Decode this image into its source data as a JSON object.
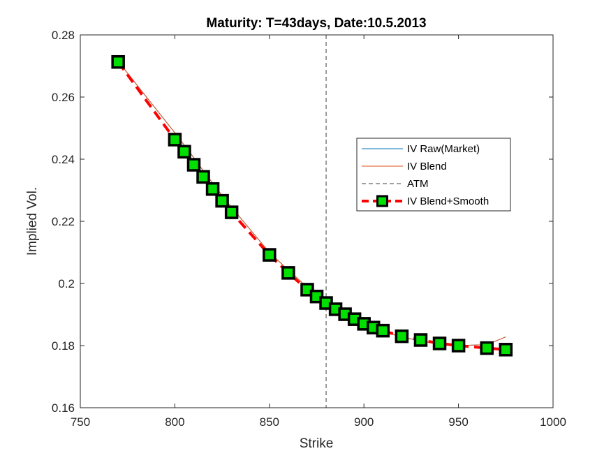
{
  "chart_data": {
    "type": "line",
    "title": "Maturity: T=43days, Date:10.5.2013",
    "xlabel": "Strike",
    "ylabel": "Implied Vol.",
    "xlim": [
      750,
      1000
    ],
    "ylim": [
      0.16,
      0.28
    ],
    "xticks": [
      750,
      800,
      850,
      900,
      950,
      1000
    ],
    "xtick_labels": [
      "750",
      "800",
      "850",
      "900",
      "950",
      "1000"
    ],
    "yticks": [
      0.16,
      0.18,
      0.2,
      0.22,
      0.24,
      0.26,
      0.28
    ],
    "ytick_labels": [
      "0.16",
      "0.18",
      "0.2",
      "0.22",
      "0.24",
      "0.26",
      "0.28"
    ],
    "grid": false,
    "legend_position": "right",
    "atm_strike": 880,
    "series": [
      {
        "name": "IV Raw(Market)",
        "color": "#0072BD",
        "style": "solid",
        "x": [
          770,
          800,
          805,
          810,
          815,
          820,
          825,
          830,
          850,
          860,
          870,
          875,
          880,
          885,
          890,
          895,
          900,
          905,
          910,
          920,
          930,
          940,
          950,
          965,
          975
        ],
        "y": [
          0.2715,
          0.2485,
          0.2445,
          0.2405,
          0.2363,
          0.2323,
          0.2283,
          0.2245,
          0.21,
          0.2043,
          0.1988,
          0.1962,
          0.194,
          0.192,
          0.1902,
          0.1885,
          0.187,
          0.1857,
          0.1845,
          0.1828,
          0.1815,
          0.1805,
          0.18,
          0.1803,
          0.1828
        ]
      },
      {
        "name": "IV Blend",
        "color": "#D95319",
        "style": "solid",
        "x": [
          770,
          800,
          805,
          810,
          815,
          820,
          825,
          830,
          850,
          860,
          870,
          875,
          880,
          885,
          890,
          895,
          900,
          905,
          910,
          920,
          930,
          940,
          950,
          965,
          975
        ],
        "y": [
          0.2715,
          0.2485,
          0.2445,
          0.2405,
          0.2363,
          0.2323,
          0.2283,
          0.2245,
          0.21,
          0.2043,
          0.1988,
          0.1962,
          0.194,
          0.192,
          0.1902,
          0.1885,
          0.187,
          0.1857,
          0.1845,
          0.1828,
          0.1815,
          0.1805,
          0.18,
          0.1803,
          0.1828
        ]
      },
      {
        "name": "ATM",
        "color": "#404040",
        "style": "dashed"
      },
      {
        "name": "IV Blend+Smooth",
        "color": "#FF0000",
        "marker_face": "#00E000",
        "marker_edge": "#000000",
        "style": "dashed",
        "x": [
          770,
          800,
          805,
          810,
          815,
          820,
          825,
          830,
          850,
          860,
          870,
          875,
          880,
          885,
          890,
          895,
          900,
          905,
          910,
          920,
          930,
          940,
          950,
          965,
          975
        ],
        "y": [
          0.2713,
          0.2463,
          0.2424,
          0.2382,
          0.2343,
          0.2304,
          0.2266,
          0.2229,
          0.2092,
          0.2034,
          0.198,
          0.1958,
          0.1937,
          0.1917,
          0.1901,
          0.1885,
          0.187,
          0.1858,
          0.1848,
          0.183,
          0.1818,
          0.1807,
          0.18,
          0.1792,
          0.1787
        ]
      }
    ]
  }
}
